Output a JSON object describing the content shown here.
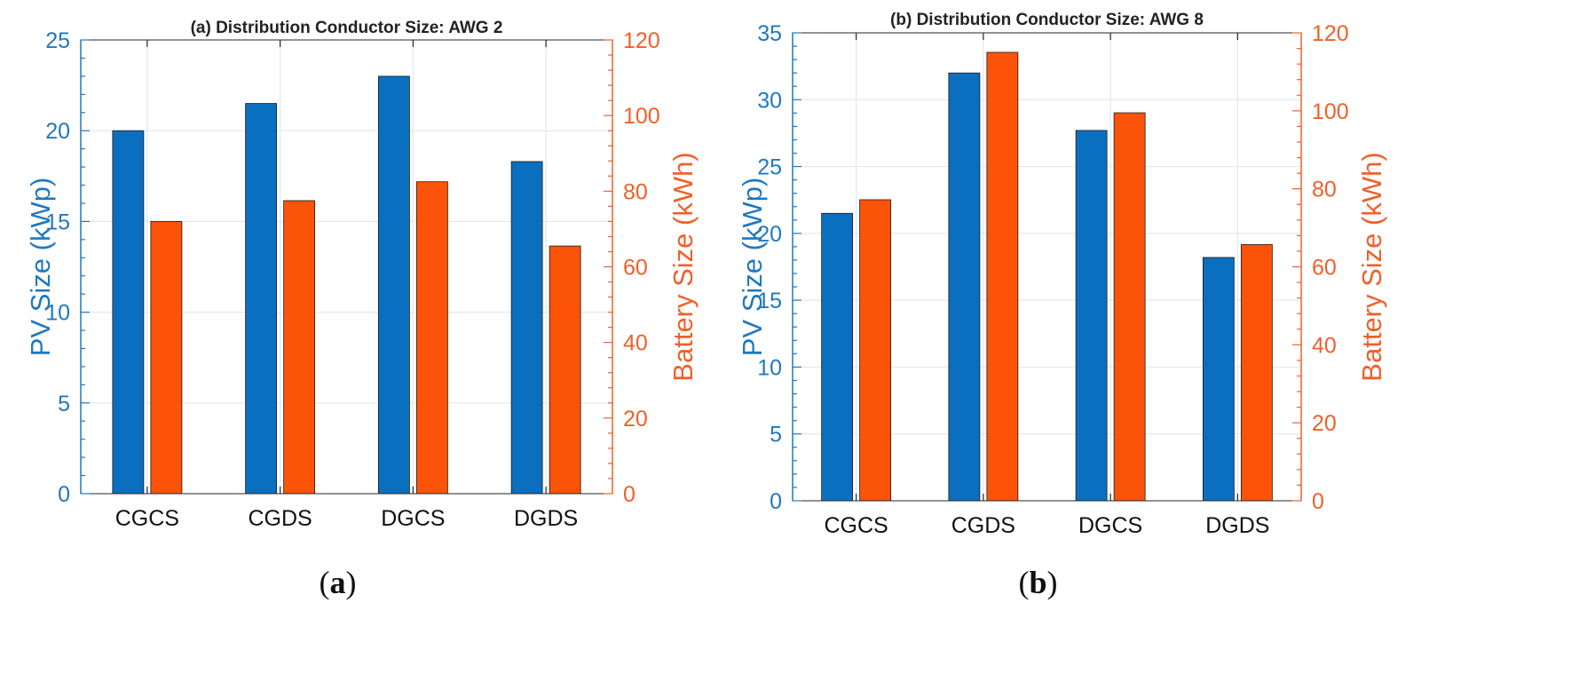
{
  "colors": {
    "pv": "#0b6fc0",
    "battery": "#fb5308",
    "left_axis": "#1f78c1",
    "right_axis": "#f0602a"
  },
  "chart_data": [
    {
      "type": "bar",
      "title": "(a) Distribution Conductor Size: AWG 2",
      "caption": {
        "open": "(",
        "letter": "a",
        "close": ")"
      },
      "categories": [
        "CGCS",
        "CGDS",
        "DGCS",
        "DGDS"
      ],
      "ylabel_left": "PV Size (kWp)",
      "ylabel_right": "Battery Size (kWh)",
      "ylim_left": [
        0,
        25
      ],
      "ylim_right": [
        0,
        120
      ],
      "yticks_left": [
        0,
        5,
        10,
        15,
        20,
        25
      ],
      "yticks_right": [
        0,
        20,
        40,
        60,
        80,
        100,
        120
      ],
      "grid": true,
      "series": [
        {
          "name": "PV Size",
          "axis": "left",
          "values": [
            20.0,
            21.5,
            23.0,
            18.3
          ]
        },
        {
          "name": "Battery Size",
          "axis": "right",
          "values": [
            72,
            77.5,
            82.5,
            65.5
          ]
        }
      ]
    },
    {
      "type": "bar",
      "title": "(b) Distribution Conductor Size: AWG 8",
      "caption": {
        "open": "(",
        "letter": "b",
        "close": ")"
      },
      "categories": [
        "CGCS",
        "CGDS",
        "DGCS",
        "DGDS"
      ],
      "ylabel_left": "PV Size (kWp)",
      "ylabel_right": "Battery Size (kWh)",
      "ylim_left": [
        0,
        35
      ],
      "ylim_right": [
        0,
        120
      ],
      "yticks_left": [
        0,
        5,
        10,
        15,
        20,
        25,
        30,
        35
      ],
      "yticks_right": [
        0,
        20,
        40,
        60,
        80,
        100,
        120
      ],
      "grid": true,
      "series": [
        {
          "name": "PV Size",
          "axis": "left",
          "values": [
            21.5,
            32.0,
            27.7,
            18.2
          ]
        },
        {
          "name": "Battery Size",
          "axis": "right",
          "values": [
            77.2,
            115.0,
            99.5,
            65.7
          ]
        }
      ]
    }
  ]
}
